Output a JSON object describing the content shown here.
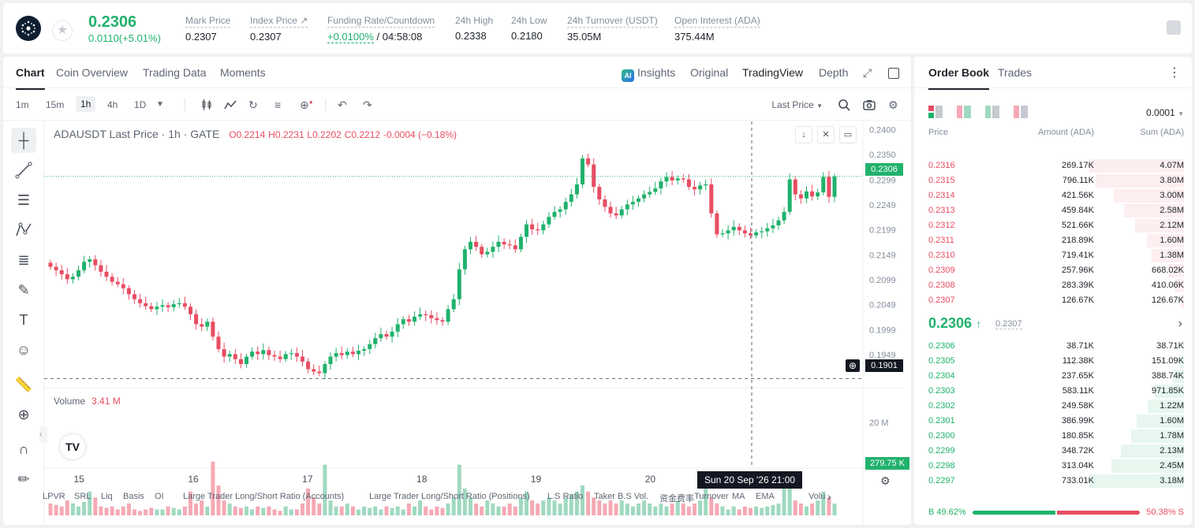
{
  "header": {
    "last_price": "0.2306",
    "change": "0.0110(+5.01%)",
    "stats": [
      {
        "label": "Mark Price",
        "value": "0.2307"
      },
      {
        "label": "Index Price ↗",
        "value": "0.2307"
      },
      {
        "label": "Funding Rate/Countdown",
        "rate": "+0.0100%",
        "countdown": "/ 04:58:08"
      },
      {
        "label": "24h High",
        "value": "0.2338"
      },
      {
        "label": "24h Low",
        "value": "0.2180"
      },
      {
        "label": "24h Turnover (USDT)",
        "value": "35.05M"
      },
      {
        "label": "Open Interest (ADA)",
        "value": "375.44M"
      }
    ]
  },
  "chart_tabs": [
    "Chart",
    "Coin Overview",
    "Trading Data",
    "Moments"
  ],
  "view_tabs": {
    "insights": "Insights",
    "original": "Original",
    "tradingview": "TradingView",
    "depth": "Depth"
  },
  "timeframes": [
    "1m",
    "15m",
    "1h",
    "4h",
    "1D"
  ],
  "price_type": "Last Price",
  "legend": {
    "title": "ADAUSDT Last Price · 1h · GATE",
    "o": "O0.2214",
    "h": "H0.2231",
    "l": "L0.2202",
    "c": "C0.2212",
    "chg": "-0.0004 (−0.18%)"
  },
  "volume_legend": {
    "label": "Volume",
    "value": "3.41 M"
  },
  "price_tags": {
    "current": "0.2306",
    "crosshair": "0.1901",
    "volume": "279.75 K"
  },
  "date_tooltip": "Sun 20 Sep '26   21:00",
  "indicators": [
    "LPVR",
    "SRL",
    "Liq",
    "Basis",
    "OI",
    "Large Trader Long/Short Ratio (Accounts)",
    "Large Trader Long/Short Ratio (Positions)",
    "L.S Ratio",
    "Taker B.S Vol.",
    "资金费率",
    "Turnover",
    "MA",
    "EMA",
    "Volu"
  ],
  "chart_data": {
    "type": "candlestick",
    "symbol": "ADAUSDT",
    "interval": "1h",
    "x_ticks": [
      "15",
      "16",
      "17",
      "18",
      "19",
      "20"
    ],
    "y_ticks": [
      "0.2400",
      "0.2350",
      "0.2299",
      "0.2249",
      "0.2199",
      "0.2149",
      "0.2099",
      "0.2049",
      "0.1999",
      "0.1949"
    ],
    "volume_ticks": [
      "20 M"
    ],
    "ylim": [
      0.1889,
      0.241
    ],
    "volume_max": 28000000,
    "close_path": [
      0.2125,
      0.2118,
      0.211,
      0.21,
      0.2105,
      0.2118,
      0.2135,
      0.214,
      0.2128,
      0.2115,
      0.2105,
      0.2095,
      0.209,
      0.2082,
      0.207,
      0.206,
      0.2052,
      0.2046,
      0.204,
      0.2045,
      0.2048,
      0.2044,
      0.205,
      0.2052,
      0.2045,
      0.203,
      0.201,
      0.2005,
      0.2015,
      0.1985,
      0.196,
      0.1945,
      0.195,
      0.194,
      0.193,
      0.1945,
      0.1955,
      0.195,
      0.1958,
      0.1948,
      0.1945,
      0.194,
      0.195,
      0.1952,
      0.1945,
      0.1935,
      0.192,
      0.1915,
      0.1912,
      0.193,
      0.1945,
      0.1952,
      0.1948,
      0.1955,
      0.195,
      0.1957,
      0.196,
      0.197,
      0.1982,
      0.199,
      0.1985,
      0.1995,
      0.201,
      0.202,
      0.2015,
      0.2025,
      0.203,
      0.2028,
      0.2022,
      0.2018,
      0.2015,
      0.204,
      0.206,
      0.212,
      0.216,
      0.2175,
      0.2165,
      0.215,
      0.2155,
      0.2165,
      0.2175,
      0.217,
      0.2168,
      0.216,
      0.2185,
      0.221,
      0.22,
      0.2198,
      0.221,
      0.2225,
      0.2235,
      0.224,
      0.2255,
      0.227,
      0.229,
      0.2342,
      0.233,
      0.2285,
      0.226,
      0.2245,
      0.2232,
      0.2228,
      0.224,
      0.225,
      0.2255,
      0.2262,
      0.227,
      0.2275,
      0.2282,
      0.2296,
      0.2305,
      0.2298,
      0.2302,
      0.23,
      0.2285,
      0.228,
      0.2288,
      0.229,
      0.2232,
      0.219,
      0.2192,
      0.2198,
      0.2205,
      0.2198,
      0.2192,
      0.2188,
      0.2194,
      0.2196,
      0.2202,
      0.2208,
      0.2218,
      0.2235,
      0.23,
      0.227,
      0.2262,
      0.2276,
      0.2266,
      0.2274,
      0.2305,
      0.2265,
      0.2306
    ],
    "volume": [
      4,
      3.5,
      3,
      5,
      4,
      3,
      4.5,
      8,
      6,
      3,
      2.5,
      3,
      2,
      3,
      4,
      2,
      1.5,
      2,
      2.5,
      2,
      2,
      3,
      2.5,
      2,
      3,
      8,
      4,
      5,
      3,
      18,
      10,
      5,
      4,
      3,
      2.5,
      3,
      2,
      3,
      2.5,
      3,
      2,
      1.5,
      3,
      2,
      2,
      4,
      9,
      6,
      4,
      17,
      5,
      3,
      3,
      4,
      3,
      2,
      3,
      2.5,
      3,
      2,
      3,
      2.5,
      3,
      2,
      4,
      3,
      5,
      3,
      2,
      3,
      2.5,
      4,
      6,
      17,
      9,
      6,
      4,
      3,
      5,
      4,
      3,
      3,
      4,
      3,
      6,
      8,
      5,
      4,
      5,
      6,
      5,
      4,
      6,
      7,
      8,
      10,
      8,
      6,
      5,
      4,
      5,
      4,
      5,
      4,
      3,
      4,
      5,
      4,
      3,
      4,
      3,
      4,
      5,
      4,
      3,
      4,
      5,
      9,
      6,
      4,
      3,
      2,
      3,
      2,
      3,
      2.5,
      3,
      2.5,
      3,
      3.5,
      4,
      11,
      9,
      5,
      4,
      3,
      4,
      5,
      8,
      6,
      4
    ]
  },
  "orderbook": {
    "tabs": [
      "Order Book",
      "Trades"
    ],
    "precision": "0.0001",
    "headers": [
      "Price",
      "Amount (ADA)",
      "Sum (ADA)"
    ],
    "asks": [
      {
        "price": "0.2316",
        "amount": "269.17K",
        "sum": "4.07M",
        "depth": 1.0
      },
      {
        "price": "0.2315",
        "amount": "796.11K",
        "sum": "3.80M",
        "depth": 0.93
      },
      {
        "price": "0.2314",
        "amount": "421.56K",
        "sum": "3.00M",
        "depth": 0.74
      },
      {
        "price": "0.2313",
        "amount": "459.84K",
        "sum": "2.58M",
        "depth": 0.63
      },
      {
        "price": "0.2312",
        "amount": "521.66K",
        "sum": "2.12M",
        "depth": 0.52
      },
      {
        "price": "0.2311",
        "amount": "218.89K",
        "sum": "1.60M",
        "depth": 0.39
      },
      {
        "price": "0.2310",
        "amount": "719.41K",
        "sum": "1.38M",
        "depth": 0.34
      },
      {
        "price": "0.2309",
        "amount": "257.96K",
        "sum": "668.02K",
        "depth": 0.16
      },
      {
        "price": "0.2308",
        "amount": "283.39K",
        "sum": "410.06K",
        "depth": 0.1
      },
      {
        "price": "0.2307",
        "amount": "126.67K",
        "sum": "126.67K",
        "depth": 0.03
      }
    ],
    "mid": {
      "price": "0.2306",
      "arrow": "↑",
      "mark": "0.2307"
    },
    "bids": [
      {
        "price": "0.2306",
        "amount": "38.71K",
        "sum": "38.71K",
        "depth": 0.01
      },
      {
        "price": "0.2305",
        "amount": "112.38K",
        "sum": "151.09K",
        "depth": 0.05
      },
      {
        "price": "0.2304",
        "amount": "237.65K",
        "sum": "388.74K",
        "depth": 0.12
      },
      {
        "price": "0.2303",
        "amount": "583.11K",
        "sum": "971.85K",
        "depth": 0.31
      },
      {
        "price": "0.2302",
        "amount": "249.58K",
        "sum": "1.22M",
        "depth": 0.38
      },
      {
        "price": "0.2301",
        "amount": "386.99K",
        "sum": "1.60M",
        "depth": 0.5
      },
      {
        "price": "0.2300",
        "amount": "180.85K",
        "sum": "1.78M",
        "depth": 0.56
      },
      {
        "price": "0.2299",
        "amount": "348.72K",
        "sum": "2.13M",
        "depth": 0.67
      },
      {
        "price": "0.2298",
        "amount": "313.04K",
        "sum": "2.45M",
        "depth": 0.77
      },
      {
        "price": "0.2297",
        "amount": "733.01K",
        "sum": "3.18M",
        "depth": 1.0
      }
    ],
    "buy_pct": "B 49.62%",
    "sell_pct": "50.38% S",
    "buy_ratio": 0.4962
  },
  "colors": {
    "up": "#20b26c",
    "down": "#e84d62",
    "up_vol": "#9fd9c0",
    "down_vol": "#f5a9b4"
  }
}
